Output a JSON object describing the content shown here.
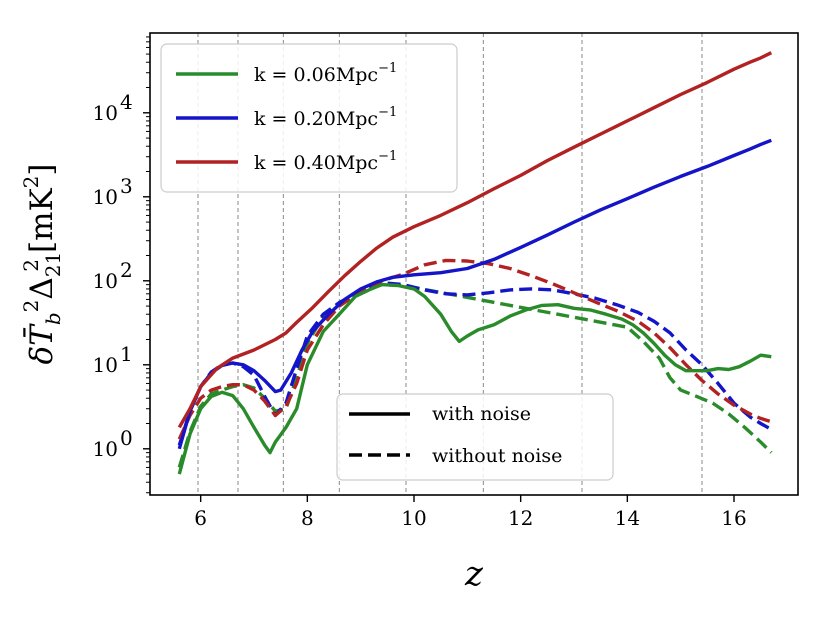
{
  "chart_data": {
    "type": "line",
    "title": "",
    "xlabel": "z",
    "ylabel": "δT̄²_b Δ²_21 [mK²]",
    "ylabel_parts": {
      "main": "δT̄",
      "sup1": "2",
      "sub1": "b",
      "delta": "Δ",
      "sup2": "2",
      "sub2": "21",
      "unit": "[mK",
      "unit_sup": "2",
      "unit_close": "]"
    },
    "xlim": [
      5.05,
      17.2
    ],
    "ylim_log10": [
      -0.55,
      4.95
    ],
    "yscale": "log",
    "xticks": [
      6,
      8,
      10,
      12,
      14,
      16
    ],
    "yticks": [
      {
        "exp": 0,
        "base": "10",
        "sup": "0"
      },
      {
        "exp": 1,
        "base": "10",
        "sup": "1"
      },
      {
        "exp": 2,
        "base": "10",
        "sup": "2"
      },
      {
        "exp": 3,
        "base": "10",
        "sup": "3"
      },
      {
        "exp": 4,
        "base": "10",
        "sup": "4"
      }
    ],
    "vlines": [
      5.95,
      6.7,
      7.55,
      8.6,
      9.85,
      11.3,
      13.15,
      15.4
    ],
    "series": [
      {
        "name": "k = 0.06Mpc⁻¹",
        "legend_main": "k = 0.06Mpc",
        "legend_sup": "−1",
        "color": "#2a8b2a",
        "style": "solid",
        "x": [
          5.6,
          5.8,
          6.0,
          6.2,
          6.4,
          6.6,
          6.8,
          7.0,
          7.2,
          7.3,
          7.4,
          7.6,
          7.8,
          8.0,
          8.3,
          8.6,
          8.9,
          9.2,
          9.4,
          9.7,
          10.0,
          10.2,
          10.5,
          10.7,
          10.85,
          11.0,
          11.2,
          11.5,
          11.8,
          12.1,
          12.4,
          12.7,
          13.0,
          13.3,
          13.6,
          13.9,
          14.1,
          14.3,
          14.5,
          14.7,
          14.9,
          15.1,
          15.3,
          15.5,
          15.7,
          15.9,
          16.1,
          16.3,
          16.5,
          16.7
        ],
        "y": [
          0.5,
          1.5,
          3.0,
          4.2,
          4.7,
          4.3,
          3.0,
          1.8,
          1.1,
          0.9,
          1.2,
          1.8,
          3.0,
          10,
          25,
          40,
          65,
          80,
          90,
          88,
          80,
          65,
          40,
          25,
          19,
          22,
          26,
          30,
          38,
          45,
          51,
          52,
          47,
          45,
          40,
          35,
          30,
          24,
          18,
          13,
          10,
          8.5,
          8.5,
          8.5,
          9.0,
          8.8,
          9.5,
          11,
          13,
          12.5
        ]
      },
      {
        "name": "k = 0.20Mpc⁻¹",
        "legend_main": "k = 0.20Mpc",
        "legend_sup": "−1",
        "color": "#1414c8",
        "style": "solid",
        "x": [
          5.6,
          5.8,
          6.0,
          6.2,
          6.4,
          6.6,
          6.8,
          7.0,
          7.2,
          7.4,
          7.5,
          7.7,
          7.9,
          8.1,
          8.4,
          8.7,
          9.0,
          9.3,
          9.6,
          10.0,
          10.5,
          11.0,
          11.5,
          12.0,
          12.5,
          13.0,
          13.5,
          14.0,
          14.5,
          15.0,
          15.5,
          16.0,
          16.3,
          16.5,
          16.7
        ],
        "y": [
          1.0,
          2.8,
          5.5,
          8.0,
          9.8,
          10.5,
          10.0,
          8.5,
          6.5,
          4.8,
          5.0,
          8.0,
          15,
          25,
          40,
          60,
          80,
          97,
          110,
          118,
          125,
          140,
          180,
          250,
          350,
          500,
          700,
          950,
          1300,
          1750,
          2300,
          3100,
          3700,
          4200,
          4700
        ]
      },
      {
        "name": "k = 0.40Mpc⁻¹",
        "legend_main": "k = 0.40Mpc",
        "legend_sup": "−1",
        "color": "#b22222",
        "style": "solid",
        "x": [
          5.6,
          5.8,
          6.0,
          6.3,
          6.6,
          7.0,
          7.4,
          7.6,
          7.8,
          8.1,
          8.4,
          8.7,
          9.0,
          9.3,
          9.6,
          10.0,
          10.5,
          11.0,
          11.5,
          12.0,
          12.5,
          13.0,
          13.5,
          14.0,
          14.5,
          15.0,
          15.5,
          16.0,
          16.3,
          16.5,
          16.7
        ],
        "y": [
          1.8,
          3.0,
          5.5,
          9.0,
          12,
          15,
          20,
          24,
          32,
          48,
          75,
          115,
          170,
          245,
          330,
          440,
          600,
          850,
          1250,
          1800,
          2700,
          3900,
          5600,
          8000,
          11500,
          16500,
          23000,
          33000,
          40000,
          45000,
          52000
        ]
      },
      {
        "name": "k = 0.06Mpc⁻¹ (without noise)",
        "color": "#2a8b2a",
        "style": "dashed",
        "x": [
          5.6,
          5.8,
          6.0,
          6.2,
          6.4,
          6.6,
          6.8,
          7.0,
          7.2,
          7.4,
          7.6,
          7.8,
          8.0,
          8.3,
          8.6,
          9.0,
          9.4,
          9.8,
          14.0,
          14.3,
          14.6,
          14.8,
          15.0,
          15.3,
          15.6,
          15.9,
          16.2,
          16.5,
          16.7
        ],
        "y": [
          0.6,
          1.6,
          3.2,
          4.5,
          5.0,
          5.5,
          5.8,
          5.3,
          4.0,
          2.8,
          3.0,
          7,
          18,
          38,
          55,
          75,
          90,
          88,
          28,
          19,
          12,
          7,
          5.0,
          4.2,
          3.5,
          2.6,
          1.8,
          1.2,
          0.9
        ]
      },
      {
        "name": "k = 0.20Mpc⁻¹ (without noise)",
        "color": "#1414c8",
        "style": "dashed",
        "x": [
          5.6,
          5.8,
          6.0,
          6.2,
          6.4,
          6.6,
          6.8,
          7.0,
          7.2,
          7.4,
          7.6,
          7.8,
          8.0,
          8.3,
          8.6,
          9.0,
          9.4,
          9.8,
          10.2,
          10.6,
          11.0,
          11.4,
          11.8,
          12.2,
          12.6,
          13.0,
          13.4,
          13.8,
          14.2,
          14.5,
          14.8,
          15.1,
          15.4,
          15.7,
          16.0,
          16.3,
          16.5,
          16.7
        ],
        "y": [
          1.1,
          2.8,
          5.5,
          8.2,
          10,
          10.5,
          9.5,
          7.5,
          4.2,
          2.5,
          3.5,
          9,
          22,
          40,
          55,
          75,
          95,
          90,
          78,
          70,
          68,
          72,
          78,
          80,
          78,
          70,
          62,
          52,
          42,
          33,
          24,
          15,
          10,
          6,
          3.5,
          2.4,
          2.0,
          1.7
        ]
      },
      {
        "name": "k = 0.40Mpc⁻¹ (without noise)",
        "color": "#b22222",
        "style": "dashed",
        "x": [
          5.6,
          5.8,
          6.0,
          6.2,
          6.4,
          6.6,
          6.8,
          7.0,
          7.2,
          7.4,
          7.6,
          7.8,
          8.0,
          8.3,
          8.6,
          9.0,
          9.4,
          9.8,
          10.2,
          10.6,
          11.0,
          11.4,
          11.8,
          12.2,
          12.6,
          13.0,
          13.4,
          13.8,
          14.2,
          14.5,
          14.8,
          15.1,
          15.4,
          15.7,
          16.0,
          16.3,
          16.5,
          16.7
        ],
        "y": [
          1.3,
          2.5,
          4.0,
          5.0,
          5.5,
          5.8,
          5.8,
          5.0,
          3.7,
          2.5,
          3.2,
          6,
          15,
          30,
          50,
          75,
          100,
          120,
          155,
          175,
          172,
          160,
          140,
          115,
          92,
          72,
          56,
          44,
          33,
          24,
          16,
          10,
          6.5,
          4.5,
          3.3,
          2.6,
          2.3,
          2.1
        ]
      }
    ],
    "style_legend": [
      {
        "label": "with noise",
        "style": "solid"
      },
      {
        "label": "without noise",
        "style": "dashed"
      }
    ]
  }
}
